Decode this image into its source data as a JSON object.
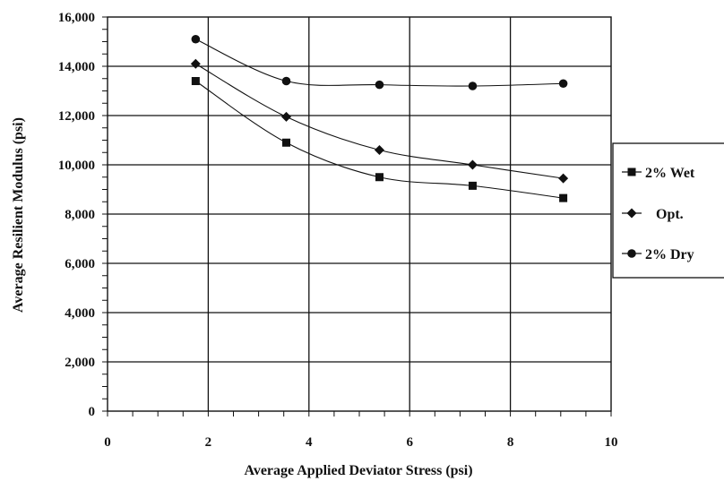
{
  "chart_data": {
    "type": "line",
    "title": "",
    "xlabel": "Average Applied Deviator Stress (psi)",
    "ylabel": "Average Resilient Modulus (psi)",
    "xlim": [
      0,
      10
    ],
    "ylim": [
      0,
      16000
    ],
    "grid": true,
    "legend_position": "right",
    "x_ticks": [
      0,
      2,
      4,
      6,
      8,
      10
    ],
    "x_tick_labels": [
      "0",
      "2",
      "4",
      "6",
      "8",
      "10"
    ],
    "y_ticks": [
      0,
      2000,
      4000,
      6000,
      8000,
      10000,
      12000,
      14000,
      16000
    ],
    "y_tick_labels": [
      "0",
      "2,000",
      "4,000",
      "6,000",
      "8,000",
      "10,000",
      "12,000",
      "14,000",
      "16,000"
    ],
    "series": [
      {
        "name": "2% Wet",
        "marker": "square",
        "x": [
          1.75,
          3.55,
          5.4,
          7.25,
          9.05
        ],
        "y": [
          13400,
          10900,
          9500,
          9150,
          8650
        ]
      },
      {
        "name": "Opt.",
        "marker": "diamond",
        "x": [
          1.75,
          3.55,
          5.4,
          7.25,
          9.05
        ],
        "y": [
          14100,
          11950,
          10600,
          10000,
          9450
        ]
      },
      {
        "name": "2% Dry",
        "marker": "circle",
        "x": [
          1.75,
          3.55,
          5.4,
          7.25,
          9.05
        ],
        "y": [
          15100,
          13400,
          13250,
          13200,
          13300
        ]
      }
    ],
    "colors": {
      "line": "#111111",
      "background": "#ffffff"
    }
  }
}
